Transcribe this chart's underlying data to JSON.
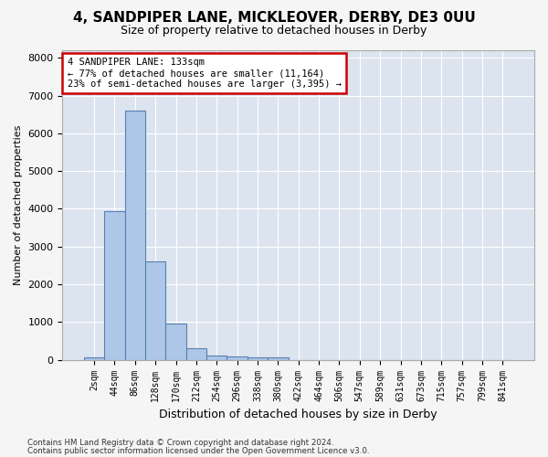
{
  "title": "4, SANDPIPER LANE, MICKLEOVER, DERBY, DE3 0UU",
  "subtitle": "Size of property relative to detached houses in Derby",
  "xlabel": "Distribution of detached houses by size in Derby",
  "ylabel": "Number of detached properties",
  "bar_values": [
    75,
    3950,
    6600,
    2600,
    950,
    300,
    120,
    90,
    75,
    55,
    0,
    0,
    0,
    0,
    0,
    0,
    0,
    0,
    0,
    0,
    0
  ],
  "bar_labels": [
    "2sqm",
    "44sqm",
    "86sqm",
    "128sqm",
    "170sqm",
    "212sqm",
    "254sqm",
    "296sqm",
    "338sqm",
    "380sqm",
    "422sqm",
    "464sqm",
    "506sqm",
    "547sqm",
    "589sqm",
    "631sqm",
    "673sqm",
    "715sqm",
    "757sqm",
    "799sqm",
    "841sqm"
  ],
  "ylim": [
    0,
    8200
  ],
  "yticks": [
    0,
    1000,
    2000,
    3000,
    4000,
    5000,
    6000,
    7000,
    8000
  ],
  "bar_color": "#aec6e8",
  "bar_edge_color": "#5580b0",
  "background_color": "#dce4f0",
  "grid_color": "#ffffff",
  "annotation_line1": "4 SANDPIPER LANE: 133sqm",
  "annotation_line2": "← 77% of detached houses are smaller (11,164)",
  "annotation_line3": "23% of semi-detached houses are larger (3,395) →",
  "annotation_box_facecolor": "#ffffff",
  "annotation_box_edgecolor": "#cc0000",
  "fig_facecolor": "#f5f5f5",
  "footer_line1": "Contains HM Land Registry data © Crown copyright and database right 2024.",
  "footer_line2": "Contains public sector information licensed under the Open Government Licence v3.0."
}
